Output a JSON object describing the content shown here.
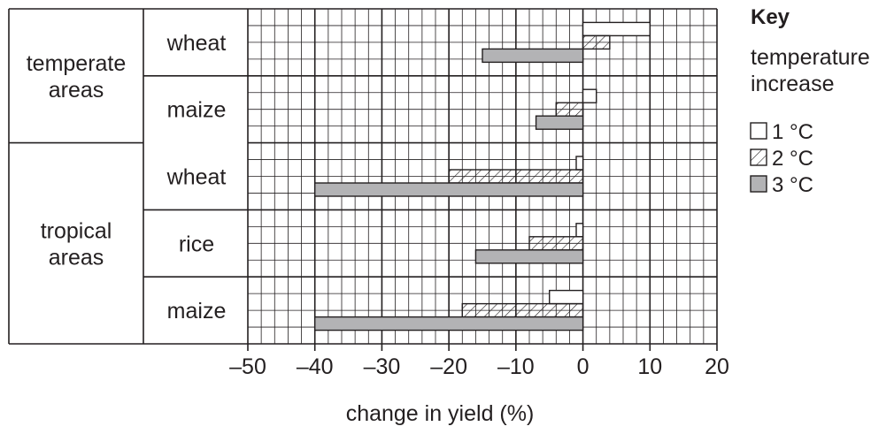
{
  "chart_data": {
    "type": "bar",
    "orientation": "horizontal",
    "xlabel": "change in yield (%)",
    "xlim": [
      -50,
      20
    ],
    "x_ticks": [
      -50,
      -40,
      -30,
      -20,
      -10,
      0,
      10,
      20
    ],
    "x_tick_labels": [
      "–50",
      "–40",
      "–30",
      "–20",
      "–10",
      "0",
      "10",
      "20"
    ],
    "grid": true,
    "groups": [
      {
        "label_lines": [
          "temperate",
          "areas"
        ],
        "categories": [
          "wheat",
          "maize"
        ]
      },
      {
        "label_lines": [
          "tropical",
          "areas"
        ],
        "categories": [
          "wheat",
          "rice",
          "maize"
        ]
      }
    ],
    "categories": [
      "wheat",
      "maize",
      "wheat",
      "rice",
      "maize"
    ],
    "series": [
      {
        "name": "1 °C",
        "pattern": "white",
        "values": [
          10,
          2,
          -1,
          -1,
          -5
        ]
      },
      {
        "name": "2 °C",
        "pattern": "hatched",
        "values": [
          4,
          -4,
          -20,
          -8,
          -18
        ]
      },
      {
        "name": "3 °C",
        "pattern": "grey",
        "values": [
          -15,
          -7,
          -40,
          -16,
          -40
        ]
      }
    ],
    "legend": {
      "title": "Key",
      "subtitle_lines": [
        "temperature",
        "increase"
      ],
      "placement": "right"
    },
    "colors": {
      "grey": "#b3b3b5",
      "ink": "#231f20"
    }
  }
}
